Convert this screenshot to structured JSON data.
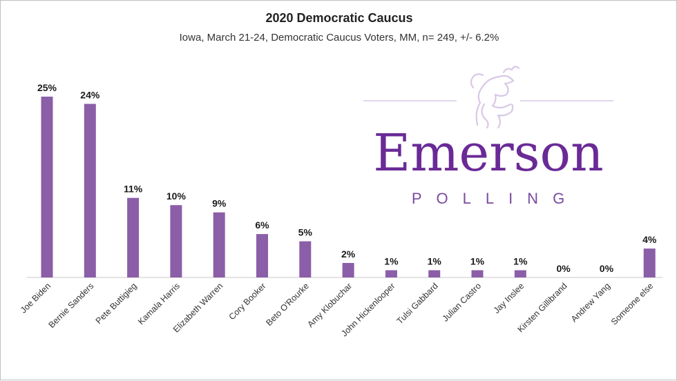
{
  "chart_data": {
    "type": "bar",
    "title": "2020 Democratic Caucus",
    "subtitle": "Iowa, March 21-24, Democratic Caucus Voters, MM, n= 249, +/- 6.2%",
    "categories": [
      "Joe Biden",
      "Bernie Sanders",
      "Pete Buttigieg",
      "Kamala Harris",
      "Elizabeth Warren",
      "Cory Booker",
      "Beto O'Rourke",
      "Amy Klobuchar",
      "John Hickenlooper",
      "Tulsi Gabbard",
      "Julian Castro",
      "Jay Inslee",
      "Kirsten Gillibrand",
      "Andrew Yang",
      "Someone else"
    ],
    "values": [
      25,
      24,
      11,
      10,
      9,
      6,
      5,
      2,
      1,
      1,
      1,
      1,
      0,
      0,
      4
    ],
    "data_labels": [
      "25%",
      "24%",
      "11%",
      "10%",
      "9%",
      "6%",
      "5%",
      "2%",
      "1%",
      "1%",
      "1%",
      "1%",
      "0%",
      "0%",
      "4%"
    ],
    "xlabel": "",
    "ylabel": "",
    "ylim": [
      0,
      25
    ],
    "grid": false,
    "legend": "none",
    "bar_color": "#8b5ea8"
  },
  "logo": {
    "name": "Emerson",
    "tagline": "POLLING",
    "color": "#6a2a96",
    "tagline_color": "#7a4aa0",
    "line_color": "#d8c8e6"
  }
}
